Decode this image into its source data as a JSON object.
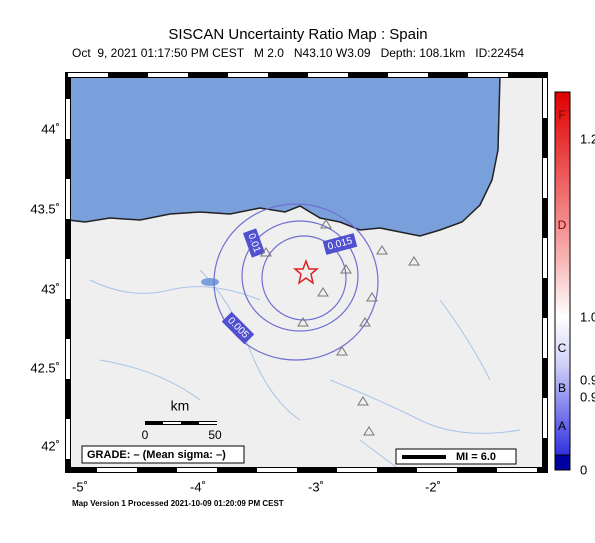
{
  "header": {
    "title": "SISCAN Uncertainty Ratio Map : Spain",
    "subtitle": "Oct  9, 2021 01:17:50 PM CEST   M 2.0   N43.10 W3.09   Depth: 108.1km   ID:22454"
  },
  "map": {
    "lon_labels": [
      "-5˚",
      "-4˚",
      "-3˚",
      "-2˚"
    ],
    "lat_labels": [
      "44˚",
      "43.5˚",
      "43˚",
      "42.5˚",
      "42˚"
    ],
    "contour_labels": [
      "0.01",
      "0.015",
      "0.005"
    ]
  },
  "scale": {
    "unit": "km",
    "ticks": [
      "0",
      "50"
    ]
  },
  "legend": {
    "grade": "GRADE: – (Mean sigma: –)",
    "mi": "MI = 6.0"
  },
  "colorbar": {
    "letters": [
      "F",
      "D",
      "C",
      "B",
      "A"
    ],
    "values": [
      "1.2",
      "1.0",
      "0.9",
      "0.9",
      "0"
    ]
  },
  "footer": "Map Version 1 Processed 2021-10-09 01:20:09 PM CEST"
}
